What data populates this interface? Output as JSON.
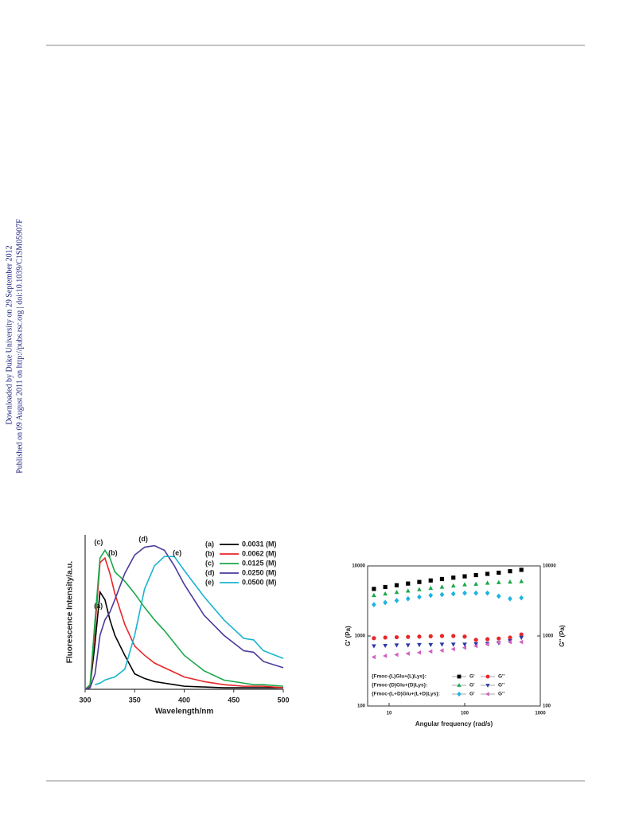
{
  "watermark": [
    "Downloaded by Duke University on 29 September 2012",
    "Published on 09 August 2011 on http://pubs.rsc.org | doi:10.1039/C1SM05907F"
  ],
  "chart_data": [
    {
      "type": "line",
      "xlabel": "Wavelength/nm",
      "ylabel": "Fluorescence Intensity/a.u.",
      "x": [
        300,
        305,
        310,
        315,
        320,
        325,
        330,
        340,
        350,
        360,
        370,
        380,
        390,
        400,
        420,
        440,
        460,
        470,
        480,
        500
      ],
      "xlim": [
        300,
        500
      ],
      "xticks": [
        300,
        350,
        400,
        450,
        500
      ],
      "ylim": [
        0,
        100
      ],
      "series": [
        {
          "label": "(a)",
          "name": "0.0031 (M)",
          "color": "#000000",
          "values": [
            0,
            2,
            30,
            63,
            58,
            45,
            35,
            22,
            10,
            7,
            5,
            4,
            3,
            2,
            1.5,
            1,
            1,
            1,
            1,
            1
          ]
        },
        {
          "label": "(b)",
          "name": "0.0062 (M)",
          "color": "#e8262a",
          "values": [
            0,
            2,
            40,
            82,
            85,
            75,
            62,
            42,
            28,
            22,
            17,
            14,
            11,
            8,
            5,
            3,
            2,
            2,
            2,
            1
          ]
        },
        {
          "label": "(c)",
          "name": "0.0125 (M)",
          "color": "#1aa84a",
          "values": [
            0,
            3,
            45,
            85,
            90,
            85,
            76,
            70,
            62,
            53,
            45,
            38,
            30,
            22,
            12,
            6,
            4,
            3,
            3,
            2
          ]
        },
        {
          "label": "(d)",
          "name": "0.0250 (M)",
          "color": "#4b3a9c",
          "values": [
            0,
            1,
            10,
            35,
            45,
            50,
            58,
            75,
            87,
            92,
            93,
            90,
            80,
            68,
            48,
            35,
            25,
            24,
            18,
            14
          ]
        },
        {
          "label": "(e)",
          "name": "0.0500 (M)",
          "color": "#1ab4d0",
          "values": [
            null,
            null,
            3,
            4,
            6,
            7,
            8,
            13,
            35,
            65,
            80,
            86,
            86,
            77,
            60,
            45,
            33,
            32,
            25,
            20
          ]
        }
      ]
    },
    {
      "type": "scatter",
      "xlabel": "Angular frequency (rad/s)",
      "ylabel": "G' (Pa)",
      "y2label": "G'' (Pa)",
      "log_x": true,
      "log_y": true,
      "x": [
        6.3,
        8.9,
        12.6,
        17.8,
        25.1,
        35.5,
        50.1,
        70.8,
        100,
        141,
        200,
        282,
        398,
        562
      ],
      "xlim": [
        5.2,
        1000
      ],
      "xticks": [
        10,
        100,
        1000
      ],
      "ylim": [
        100,
        10000
      ],
      "yticks": [
        100,
        1000,
        10000
      ],
      "y2lim": [
        100,
        10000
      ],
      "y2ticks": [
        100,
        1000,
        10000
      ],
      "groups": [
        {
          "name": "{Fmoc-(L)Glu+(L)Lys}:",
          "series": [
            {
              "name": "G'",
              "color": "#000000",
              "marker": "square",
              "values": [
                4700,
                5000,
                5300,
                5600,
                5900,
                6200,
                6500,
                6800,
                7100,
                7400,
                7700,
                8000,
                8400,
                8800
              ]
            },
            {
              "name": "G''",
              "color": "#e8262a",
              "marker": "circle",
              "axis": "y2",
              "values": [
                930,
                950,
                960,
                970,
                980,
                990,
                1000,
                1000,
                980,
                880,
                900,
                920,
                950,
                1050
              ]
            }
          ]
        },
        {
          "name": "{Fmoc-(D)Glu+(D)Lys}:",
          "series": [
            {
              "name": "G'",
              "color": "#1aa84a",
              "marker": "triangle-up",
              "values": [
                3800,
                4000,
                4200,
                4400,
                4600,
                4800,
                5000,
                5200,
                5400,
                5500,
                5700,
                5800,
                5900,
                6000
              ]
            },
            {
              "name": "G''",
              "color": "#2a3aa8",
              "marker": "triangle-down",
              "axis": "y2",
              "values": [
                720,
                730,
                740,
                740,
                750,
                750,
                760,
                760,
                760,
                770,
                780,
                800,
                850,
                950
              ]
            }
          ]
        },
        {
          "name": "{Fmoc-(L+D)Glu+(L+D)Lys}:",
          "series": [
            {
              "name": "G'",
              "color": "#1ab4e0",
              "marker": "diamond",
              "values": [
                2800,
                3000,
                3200,
                3400,
                3600,
                3800,
                3900,
                4000,
                4100,
                4100,
                4100,
                3700,
                3400,
                3500
              ]
            },
            {
              "name": "G''",
              "color": "#d060c0",
              "marker": "triangle-left",
              "axis": "y2",
              "values": [
                500,
                520,
                540,
                560,
                580,
                600,
                620,
                650,
                680,
                720,
                760,
                800,
                820,
                820
              ]
            }
          ]
        }
      ]
    }
  ]
}
